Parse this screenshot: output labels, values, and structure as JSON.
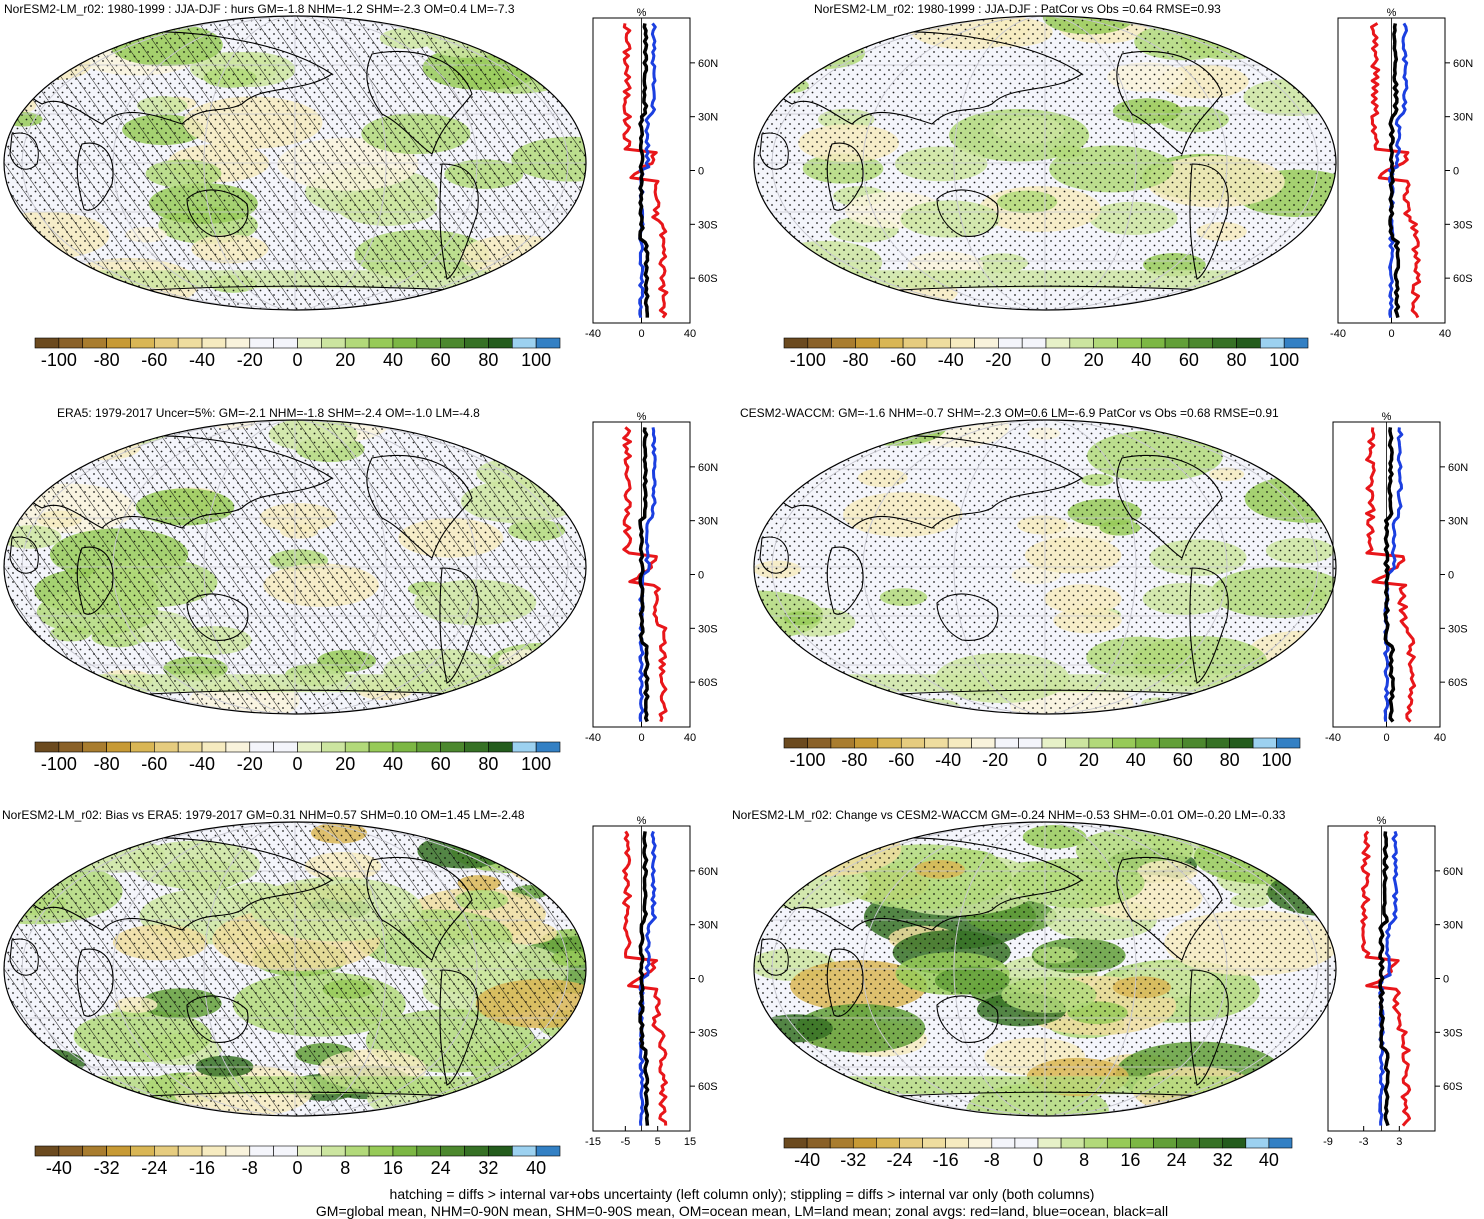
{
  "colors": {
    "scale": [
      "#6b4a1f",
      "#8a6128",
      "#a97d2f",
      "#c79a35",
      "#d9b655",
      "#e6cc7f",
      "#efdd9f",
      "#f6ebc0",
      "#f9f3dc",
      "#f4f5fb",
      "#f4f5fb",
      "#e7f1c8",
      "#cce5a0",
      "#b2d97a",
      "#97ca58",
      "#7cb744",
      "#629f38",
      "#4c882e",
      "#367125",
      "#245c1d",
      "#9cd1f0",
      "#3380c4"
    ],
    "land": "#e8161a",
    "ocean": "#1b3fe0",
    "all": "#000000"
  },
  "panels": [
    {
      "id": "p1",
      "title": "NorESM2-LM_r02: 1980-1999 : JJA-DJF : hurs GM=-1.8 NHM=-1.2 SHM=-2.3 OM=0.4 LM=-7.3",
      "hatched": true,
      "zonal_unit": "%",
      "zonal_xlim": [
        -40,
        40
      ],
      "zonal_xticks": [
        "-40",
        "0",
        "40"
      ],
      "lat_ticks": [
        "60N",
        "30N",
        "0",
        "30S",
        "60S"
      ],
      "colorbar_ticks": [
        "-100",
        "-80",
        "-60",
        "-40",
        "-20",
        "0",
        "20",
        "40",
        "60",
        "80",
        "100"
      ]
    },
    {
      "id": "p2",
      "title": "NorESM2-LM_r02: 1980-1999 : JJA-DJF : PatCor vs Obs =0.64 RMSE=0.93",
      "hatched": false,
      "zonal_unit": "%",
      "zonal_xlim": [
        -40,
        40
      ],
      "zonal_xticks": [
        "-40",
        "0",
        "40"
      ],
      "lat_ticks": [
        "60N",
        "30N",
        "0",
        "30S",
        "60S"
      ],
      "colorbar_ticks": [
        "-100",
        "-80",
        "-60",
        "-40",
        "-20",
        "0",
        "20",
        "40",
        "60",
        "80",
        "100"
      ]
    },
    {
      "id": "p3",
      "title": "ERA5: 1979-2017 Uncer=5%: GM=-2.1 NHM=-1.8 SHM=-2.4 OM=-1.0 LM=-4.8",
      "hatched": true,
      "zonal_unit": "%",
      "zonal_xlim": [
        -40,
        40
      ],
      "zonal_xticks": [
        "-40",
        "0",
        "40"
      ],
      "lat_ticks": [
        "60N",
        "30N",
        "0",
        "30S",
        "60S"
      ],
      "colorbar_ticks": [
        "-100",
        "-80",
        "-60",
        "-40",
        "-20",
        "0",
        "20",
        "40",
        "60",
        "80",
        "100"
      ]
    },
    {
      "id": "p4",
      "title": "CESM2-WACCM: GM=-1.6 NHM=-0.7 SHM=-2.3 OM=0.6 LM=-6.9 PatCor vs Obs =0.68 RMSE=0.91",
      "hatched": false,
      "zonal_unit": "%",
      "zonal_xlim": [
        -40,
        40
      ],
      "zonal_xticks": [
        "-40",
        "0",
        "40"
      ],
      "lat_ticks": [
        "60N",
        "30N",
        "0",
        "30S",
        "60S"
      ],
      "colorbar_ticks": [
        "-100",
        "-80",
        "-60",
        "-40",
        "-20",
        "0",
        "20",
        "40",
        "60",
        "80",
        "100"
      ]
    },
    {
      "id": "p5",
      "title": "NorESM2-LM_r02: Bias vs ERA5: 1979-2017 GM=0.31 NHM=0.57 SHM=0.10 OM=1.45 LM=-2.48",
      "hatched": true,
      "zonal_unit": "%",
      "zonal_xlim": [
        -15,
        15
      ],
      "zonal_xticks": [
        "-15",
        "-5",
        "5",
        "15"
      ],
      "lat_ticks": [
        "60N",
        "30N",
        "0",
        "30S",
        "60S"
      ],
      "colorbar_ticks": [
        "-40",
        "-32",
        "-24",
        "-16",
        "-8",
        "0",
        "8",
        "16",
        "24",
        "32",
        "40"
      ]
    },
    {
      "id": "p6",
      "title": "NorESM2-LM_r02: Change vs CESM2-WACCM GM=-0.24 NHM=-0.53 SHM=-0.01 OM=-0.20 LM=-0.33",
      "hatched": false,
      "zonal_unit": "%",
      "zonal_xlim": [
        -9,
        9
      ],
      "zonal_xticks": [
        "-9",
        "-3",
        "3"
      ],
      "lat_ticks": [
        "60N",
        "30N",
        "0",
        "30S",
        "60S"
      ],
      "colorbar_ticks": [
        "-40",
        "-32",
        "-24",
        "-16",
        "-8",
        "0",
        "8",
        "16",
        "24",
        "32",
        "40"
      ]
    }
  ],
  "footer": {
    "line1": "hatching = diffs > internal var+obs uncertainty (left column only); stippling = diffs > internal var only (both columns)",
    "line2": "GM=global mean, NHM=0-90N mean, SHM=0-90S mean, OM=ocean mean, LM=land mean; zonal avgs: red=land, blue=ocean, black=all"
  }
}
